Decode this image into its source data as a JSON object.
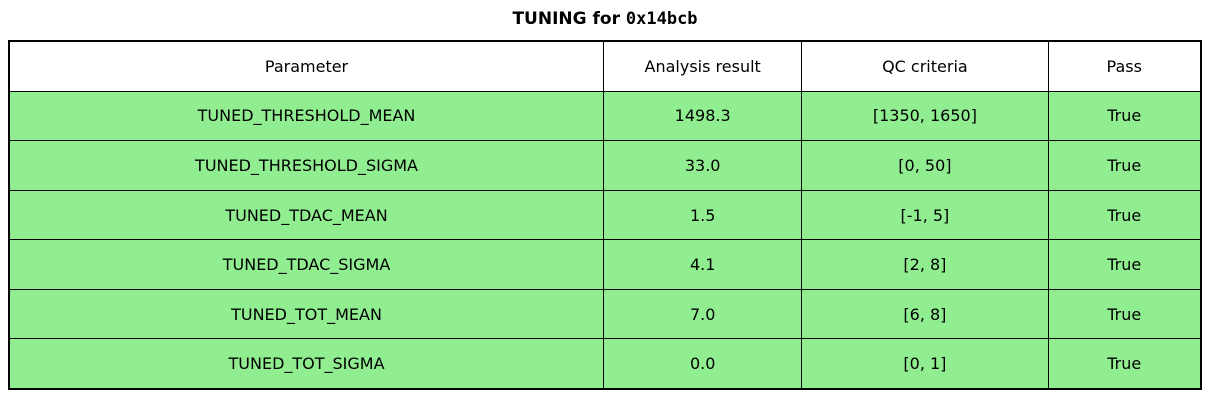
{
  "title": {
    "prefix": "TUNING for ",
    "chip_id": "0x14bcb",
    "full": "TUNING for 0x14bcb"
  },
  "colors": {
    "pass_row_bg": "#90EE90",
    "header_bg": "#FFFFFF",
    "border": "#000000",
    "text": "#000000"
  },
  "table": {
    "columns": [
      "Parameter",
      "Analysis result",
      "QC criteria",
      "Pass"
    ],
    "rows": [
      {
        "parameter": "TUNED_THRESHOLD_MEAN",
        "analysis_result": "1498.3",
        "qc_criteria": "[1350, 1650]",
        "pass": "True"
      },
      {
        "parameter": "TUNED_THRESHOLD_SIGMA",
        "analysis_result": "33.0",
        "qc_criteria": "[0, 50]",
        "pass": "True"
      },
      {
        "parameter": "TUNED_TDAC_MEAN",
        "analysis_result": "1.5",
        "qc_criteria": "[-1, 5]",
        "pass": "True"
      },
      {
        "parameter": "TUNED_TDAC_SIGMA",
        "analysis_result": "4.1",
        "qc_criteria": "[2, 8]",
        "pass": "True"
      },
      {
        "parameter": "TUNED_TOT_MEAN",
        "analysis_result": "7.0",
        "qc_criteria": "[6, 8]",
        "pass": "True"
      },
      {
        "parameter": "TUNED_TOT_SIGMA",
        "analysis_result": "0.0",
        "qc_criteria": "[0, 1]",
        "pass": "True"
      }
    ]
  },
  "chart_data": {
    "type": "table",
    "title": "TUNING for 0x14bcb",
    "columns": [
      "Parameter",
      "Analysis result",
      "QC criteria",
      "Pass"
    ],
    "rows": [
      [
        "TUNED_THRESHOLD_MEAN",
        "1498.3",
        "[1350, 1650]",
        "True"
      ],
      [
        "TUNED_THRESHOLD_SIGMA",
        "33.0",
        "[0, 50]",
        "True"
      ],
      [
        "TUNED_TDAC_MEAN",
        "1.5",
        "[-1, 5]",
        "True"
      ],
      [
        "TUNED_TDAC_SIGMA",
        "4.1",
        "[2, 8]",
        "True"
      ],
      [
        "TUNED_TOT_MEAN",
        "7.0",
        "[6, 8]",
        "True"
      ],
      [
        "TUNED_TOT_SIGMA",
        "0.0",
        "[0, 1]",
        "True"
      ]
    ],
    "row_colors": [
      "#90EE90",
      "#90EE90",
      "#90EE90",
      "#90EE90",
      "#90EE90",
      "#90EE90"
    ],
    "header_color": "#FFFFFF",
    "all_pass": true
  }
}
